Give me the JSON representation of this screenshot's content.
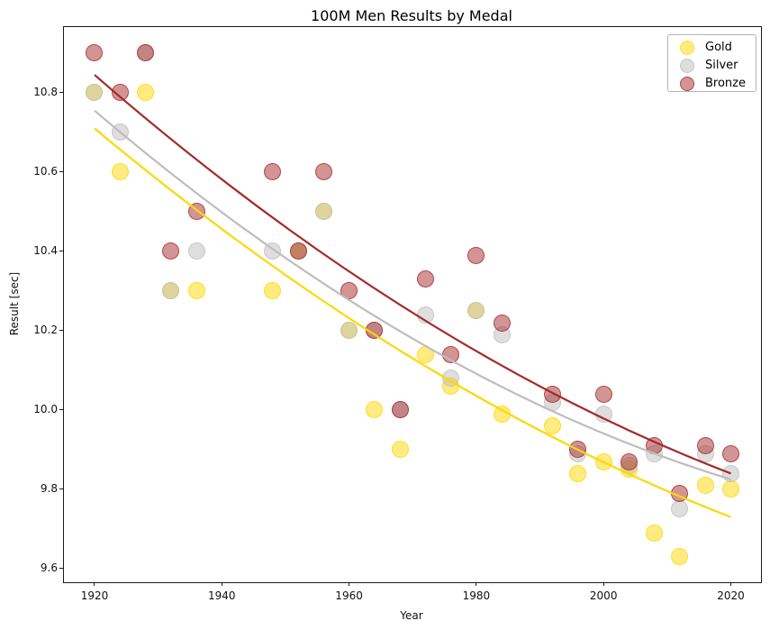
{
  "title": "100M Men Results by Medal",
  "chart_data": {
    "type": "scatter",
    "title": "100M Men Results by Medal",
    "xlabel": "Year",
    "ylabel": "Result [sec]",
    "xlim": [
      1915.05,
      2024.6
    ],
    "ylim": [
      9.568,
      10.968
    ],
    "xticks": [
      1920,
      1940,
      1960,
      1980,
      2000,
      2020
    ],
    "yticks": [
      10.8,
      10.6,
      10.4,
      10.2,
      10.0,
      9.8,
      9.6
    ],
    "grid": false,
    "legend_position": "upper right",
    "marker_alpha": 0.5,
    "years": [
      1920,
      1924,
      1928,
      1932,
      1936,
      1948,
      1952,
      1956,
      1960,
      1964,
      1968,
      1972,
      1976,
      1980,
      1984,
      1992,
      1996,
      2000,
      2004,
      2008,
      2012,
      2016,
      2020
    ],
    "series": [
      {
        "name": "Gold",
        "color": "#FFD700",
        "line_color": "#FFD700",
        "values": [
          10.8,
          10.6,
          10.8,
          10.3,
          10.3,
          10.3,
          10.4,
          10.5,
          10.2,
          10.0,
          9.9,
          10.14,
          10.06,
          10.25,
          9.99,
          9.96,
          9.84,
          9.87,
          9.85,
          9.69,
          9.63,
          9.81,
          9.8
        ],
        "trend": {
          "x_start": 1920,
          "y_start": 10.71,
          "x_mid": 1970,
          "y_mid": 10.13,
          "x_end": 2020,
          "y_end": 9.73
        }
      },
      {
        "name": "Silver",
        "color": "#BEBEBE",
        "line_color": "#BDBDBD",
        "values": [
          10.8,
          10.7,
          10.9,
          10.3,
          10.4,
          10.4,
          10.4,
          10.5,
          10.2,
          10.2,
          10.0,
          10.24,
          10.08,
          10.25,
          10.19,
          10.02,
          9.89,
          9.99,
          9.86,
          9.89,
          9.75,
          9.89,
          9.84
        ],
        "trend": {
          "x_start": 1920,
          "y_start": 10.755,
          "x_mid": 1970,
          "y_mid": 10.18,
          "x_end": 2020,
          "y_end": 9.825
        }
      },
      {
        "name": "Bronze",
        "color": "#A52A2A",
        "line_color": "#A52A2A",
        "values": [
          10.9,
          10.8,
          10.9,
          10.4,
          10.5,
          10.6,
          10.4,
          10.6,
          10.3,
          10.2,
          10.0,
          10.33,
          10.14,
          10.39,
          10.22,
          10.04,
          9.9,
          10.04,
          9.87,
          9.91,
          9.79,
          9.91,
          9.89
        ],
        "trend": {
          "x_start": 1920,
          "y_start": 10.845,
          "x_mid": 1970,
          "y_mid": 10.245,
          "x_end": 2020,
          "y_end": 9.84
        }
      }
    ],
    "legend_entries": [
      "Gold",
      "Silver",
      "Bronze"
    ]
  }
}
